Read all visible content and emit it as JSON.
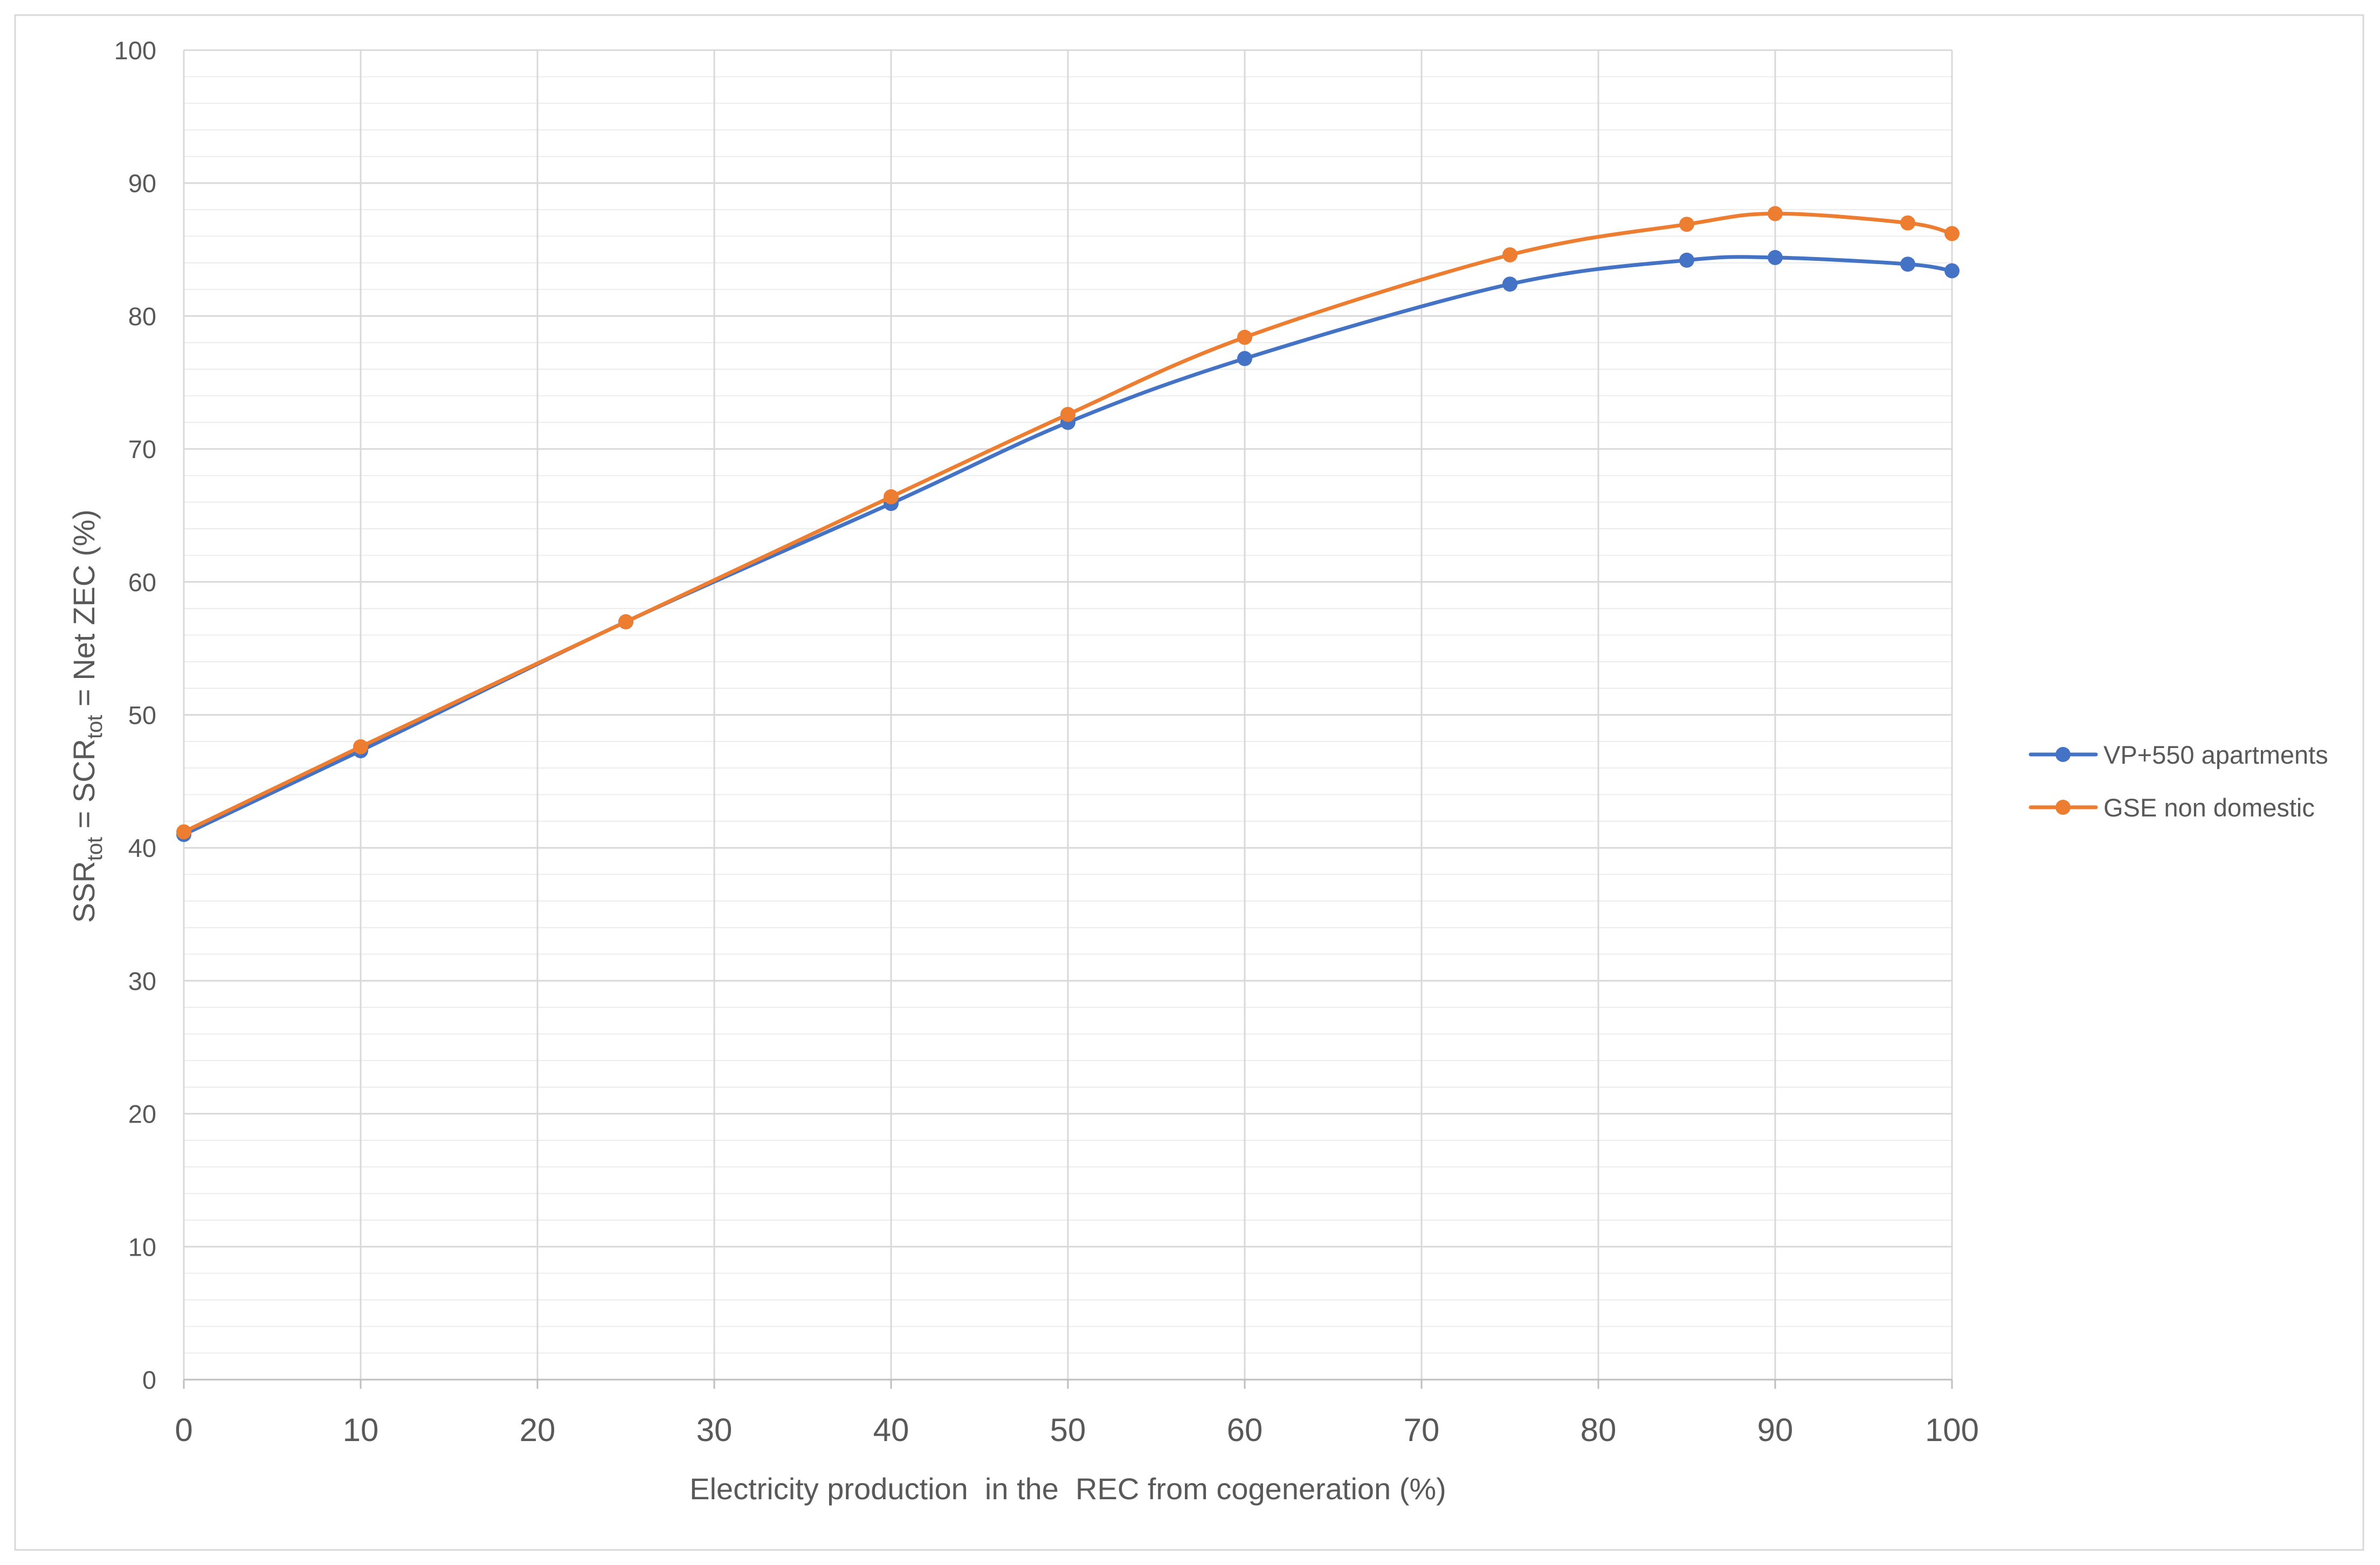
{
  "chart_data": {
    "type": "line",
    "smoothed": true,
    "xlabel": "Electricity production  in the  REC from cogeneration (%)",
    "ylabel_parts": [
      {
        "text": "SSR",
        "subscript": false
      },
      {
        "text": "tot",
        "subscript": true
      },
      {
        "text": " = SCR",
        "subscript": false
      },
      {
        "text": "tot",
        "subscript": true
      },
      {
        "text": " = Net ZEC (%)",
        "subscript": false
      }
    ],
    "xlim": [
      0,
      100
    ],
    "ylim": [
      0,
      100
    ],
    "x_ticks": [
      0,
      10,
      20,
      30,
      40,
      50,
      60,
      70,
      80,
      90,
      100
    ],
    "y_ticks": [
      0,
      10,
      20,
      30,
      40,
      50,
      60,
      70,
      80,
      90,
      100
    ],
    "grid": {
      "x_major": true,
      "y_major": true,
      "y_minor_step": 2
    },
    "legend_position": "right",
    "x": [
      0,
      10,
      25,
      40,
      50,
      60,
      75,
      85,
      90,
      97.5,
      100
    ],
    "series": [
      {
        "name": "VP+550 apartments",
        "color": "#4472C4",
        "values": [
          41.0,
          47.3,
          57.0,
          65.9,
          72.0,
          76.8,
          82.4,
          84.2,
          84.4,
          83.9,
          83.4
        ]
      },
      {
        "name": "GSE non domestic",
        "color": "#ED7D31",
        "values": [
          41.2,
          47.6,
          57.0,
          66.4,
          72.6,
          78.4,
          84.6,
          86.9,
          87.7,
          87.0,
          86.2
        ]
      }
    ]
  }
}
